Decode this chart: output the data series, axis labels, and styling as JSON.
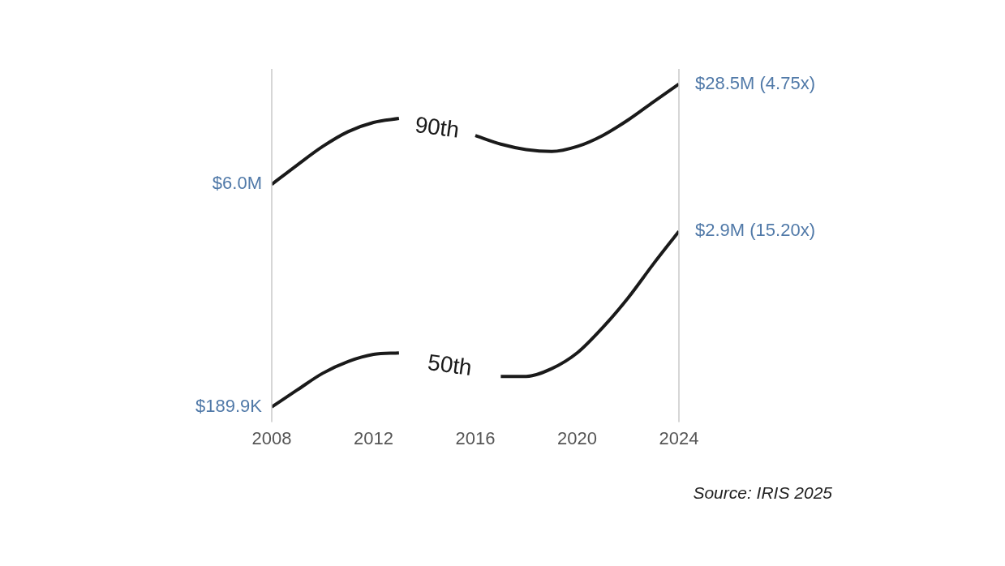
{
  "chart_data": {
    "type": "line",
    "x": [
      2008,
      2009,
      2010,
      2011,
      2012,
      2013,
      2014,
      2015,
      2016,
      2017,
      2018,
      2019,
      2020,
      2021,
      2022,
      2023,
      2024
    ],
    "xlim": [
      2008,
      2024
    ],
    "xticks": [
      2008,
      2012,
      2016,
      2020,
      2024
    ],
    "ylim": [
      150000,
      36000000
    ],
    "log": true,
    "tick_labels": "x",
    "grid": false,
    "legend": false,
    "marker": "none",
    "line_style": "solid",
    "series": [
      {
        "name": "90th",
        "color": "#1a1a1a",
        "values": [
          6000000,
          8100000,
          10800000,
          13600000,
          15700000,
          16700000,
          null,
          null,
          12800000,
          11200000,
          10300000,
          10000000,
          10800000,
          12800000,
          16300000,
          21600000,
          28500000
        ],
        "value_labels": [
          "$6.0M",
          null,
          null,
          null,
          null,
          null,
          null,
          null,
          null,
          null,
          null,
          null,
          null,
          null,
          null,
          null,
          "$28.5M (4.75x)"
        ]
      },
      {
        "name": "50th",
        "color": "#1a1a1a",
        "values": [
          189900,
          247000,
          320000,
          384000,
          429000,
          439000,
          null,
          null,
          null,
          305000,
          305000,
          344000,
          439000,
          650000,
          1030000,
          1750000,
          2900000
        ],
        "value_labels": [
          "$189.9K",
          null,
          null,
          null,
          null,
          null,
          null,
          null,
          null,
          null,
          null,
          null,
          null,
          null,
          null,
          null,
          "$2.9M (15.20x)"
        ]
      }
    ],
    "annotations": [
      "Source: IRIS 2025"
    ]
  }
}
